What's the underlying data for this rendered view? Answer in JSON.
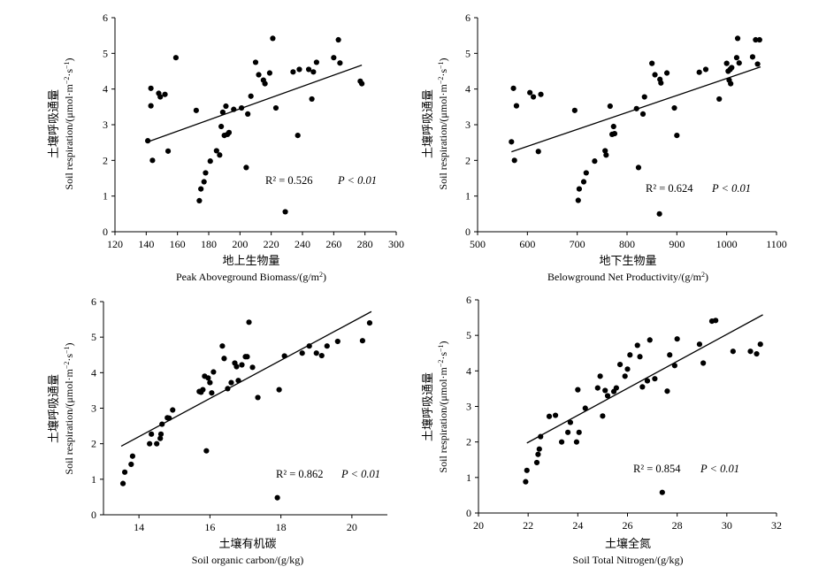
{
  "chart_data": [
    {
      "type": "scatter",
      "title": "",
      "xlabel_cn": "地上生物量",
      "xlabel_en": "Peak Aboveground Biomass/(g/m",
      "xlabel_sup": "2",
      "xlabel_tail": ")",
      "ylabel_cn": "土壤呼吸通量",
      "ylabel_en": "Soil respiration/(μmol·m",
      "ylabel_sup1": "−2",
      "ylabel_mid": "·s",
      "ylabel_sup2": "−1",
      "ylabel_tail": ")",
      "xlim": [
        120,
        300
      ],
      "ylim": [
        0,
        6
      ],
      "xticks": [
        "120",
        "140",
        "160",
        "180",
        "200",
        "220",
        "240",
        "260",
        "280",
        "300"
      ],
      "yticks": [
        "0",
        "1",
        "2",
        "3",
        "4",
        "5",
        "6"
      ],
      "r2_text": "R² = 0.526",
      "p_text": "P < 0.01",
      "fit": {
        "x": [
          141,
          278
        ],
        "y": [
          2.52,
          4.67
        ]
      },
      "points": {
        "x": [
          141,
          143,
          143,
          144,
          148,
          149,
          152,
          154,
          159,
          172,
          174,
          175,
          177,
          178,
          181,
          185,
          187,
          188,
          189,
          190,
          191,
          192,
          193,
          196,
          201,
          204,
          205,
          207,
          210,
          212,
          215,
          216,
          219,
          221,
          223,
          229,
          234,
          237,
          238,
          244,
          246,
          247,
          249,
          260,
          263,
          264,
          277,
          278
        ],
        "y": [
          2.55,
          4.02,
          3.53,
          2.0,
          3.88,
          3.78,
          3.85,
          2.26,
          4.88,
          3.4,
          0.87,
          1.2,
          1.4,
          1.65,
          1.98,
          2.27,
          2.15,
          2.95,
          3.35,
          2.7,
          3.52,
          2.73,
          2.78,
          3.43,
          3.47,
          1.8,
          3.3,
          3.8,
          4.75,
          4.4,
          4.25,
          4.15,
          4.45,
          5.42,
          3.47,
          0.56,
          4.48,
          2.7,
          4.55,
          4.55,
          3.72,
          4.48,
          4.75,
          4.88,
          5.38,
          4.73,
          4.22,
          4.15
        ]
      }
    },
    {
      "type": "scatter",
      "title": "",
      "xlabel_cn": "地下生物量",
      "xlabel_en": "Belowground Net Productivity/(g/m",
      "xlabel_sup": "2",
      "xlabel_tail": ")",
      "ylabel_cn": "土壤呼吸通量",
      "ylabel_en": "Soil respiration/(μmol·m",
      "ylabel_sup1": "−2",
      "ylabel_mid": "·s",
      "ylabel_sup2": "−1",
      "ylabel_tail": ")",
      "xlim": [
        500,
        1100
      ],
      "ylim": [
        0,
        6
      ],
      "xticks": [
        "500",
        "600",
        "700",
        "800",
        "900",
        "1000",
        "1100"
      ],
      "yticks": [
        "0",
        "1",
        "2",
        "3",
        "4",
        "5",
        "6"
      ],
      "r2_text": "R² = 0.624",
      "p_text": "P < 0.01",
      "fit": {
        "x": [
          568,
          1068
        ],
        "y": [
          2.24,
          4.62
        ]
      },
      "points": {
        "x": [
          568,
          572,
          574,
          578,
          605,
          612,
          622,
          627,
          695,
          702,
          704,
          713,
          718,
          735,
          756,
          758,
          766,
          770,
          773,
          775,
          819,
          823,
          832,
          835,
          850,
          856,
          865,
          866,
          868,
          880,
          895,
          900,
          945,
          958,
          985,
          1000,
          1003,
          1005,
          1007,
          1008,
          1010,
          1020,
          1022,
          1025,
          1052,
          1058,
          1062,
          1066
        ],
        "y": [
          2.52,
          4.02,
          2.0,
          3.53,
          3.9,
          3.78,
          2.25,
          3.85,
          3.4,
          0.88,
          1.2,
          1.4,
          1.65,
          1.98,
          2.27,
          2.15,
          3.52,
          2.73,
          2.95,
          2.75,
          3.45,
          1.8,
          3.3,
          3.78,
          4.72,
          4.4,
          0.5,
          4.27,
          4.17,
          4.45,
          3.47,
          2.7,
          4.47,
          4.55,
          3.72,
          4.72,
          4.5,
          4.25,
          4.55,
          4.15,
          4.6,
          4.88,
          5.42,
          4.73,
          4.9,
          5.38,
          4.7,
          5.38
        ]
      }
    },
    {
      "type": "scatter",
      "title": "",
      "xlabel_cn": "土壤有机碳",
      "xlabel_en": "Soil organic carbon/(g/kg)",
      "ylabel_cn": "土壤呼吸通量",
      "ylabel_en": "Soil respiration/(μmol·m",
      "ylabel_sup1": "−2",
      "ylabel_mid": "·s",
      "ylabel_sup2": "−1",
      "ylabel_tail": ")",
      "xlim": [
        13,
        21
      ],
      "ylim": [
        0,
        6
      ],
      "xticks": [
        "14",
        "16",
        "18",
        "20"
      ],
      "yticks": [
        "0",
        "1",
        "2",
        "3",
        "4",
        "5",
        "6"
      ],
      "r2_text": "R² = 0.862",
      "p_text": "P < 0.01",
      "fit": {
        "x": [
          13.5,
          20.55
        ],
        "y": [
          1.93,
          5.72
        ]
      },
      "points": {
        "x": [
          13.55,
          13.6,
          13.78,
          13.82,
          14.3,
          14.35,
          14.5,
          14.6,
          14.62,
          14.65,
          14.8,
          14.85,
          14.95,
          15.7,
          15.75,
          15.8,
          15.85,
          15.9,
          15.95,
          16.0,
          16.05,
          16.1,
          16.35,
          16.4,
          16.5,
          16.6,
          16.7,
          16.75,
          16.8,
          16.9,
          17.0,
          17.05,
          17.1,
          17.2,
          17.35,
          17.9,
          17.95,
          18.1,
          18.6,
          18.8,
          19.0,
          19.15,
          19.3,
          19.6,
          20.3,
          20.5
        ],
        "y": [
          0.88,
          1.2,
          1.42,
          1.65,
          2.0,
          2.27,
          2.0,
          2.15,
          2.27,
          2.55,
          2.73,
          2.72,
          2.95,
          3.47,
          3.45,
          3.52,
          3.9,
          1.8,
          3.85,
          3.72,
          3.43,
          4.02,
          4.75,
          4.4,
          3.55,
          3.72,
          4.27,
          4.17,
          3.78,
          4.22,
          4.45,
          4.45,
          5.42,
          4.15,
          3.3,
          0.48,
          3.52,
          4.47,
          4.55,
          4.75,
          4.55,
          4.48,
          4.75,
          4.88,
          4.9,
          5.4
        ]
      }
    },
    {
      "type": "scatter",
      "title": "",
      "xlabel_cn": "土壤全氮",
      "xlabel_en": "Soil Total Nitrogen/(g/kg)",
      "ylabel_cn": "土壤呼吸通量",
      "ylabel_en": "Soil respiration/(μmol·m",
      "ylabel_sup1": "−2",
      "ylabel_mid": "·s",
      "ylabel_sup2": "−1",
      "ylabel_tail": ")",
      "xlim": [
        20,
        32
      ],
      "ylim": [
        0,
        6
      ],
      "xticks": [
        "20",
        "22",
        "24",
        "26",
        "28",
        "30",
        "32"
      ],
      "yticks": [
        "0",
        "1",
        "2",
        "3",
        "4",
        "5",
        "6"
      ],
      "r2_text": "R² = 0.854",
      "p_text": "P < 0.01",
      "fit": {
        "x": [
          21.95,
          31.45
        ],
        "y": [
          1.97,
          5.58
        ]
      },
      "points": {
        "x": [
          21.9,
          21.95,
          22.35,
          22.4,
          22.45,
          22.5,
          22.85,
          23.1,
          23.35,
          23.6,
          23.7,
          23.95,
          24.0,
          24.05,
          24.3,
          24.8,
          24.9,
          25.0,
          25.1,
          25.2,
          25.45,
          25.55,
          25.7,
          25.9,
          26.0,
          26.1,
          26.4,
          26.5,
          26.6,
          26.8,
          26.9,
          27.1,
          27.4,
          27.6,
          27.7,
          27.9,
          28.0,
          28.9,
          29.05,
          29.4,
          29.55,
          30.25,
          30.95,
          31.2,
          31.35
        ],
        "y": [
          0.88,
          1.2,
          1.42,
          1.65,
          1.8,
          2.15,
          2.72,
          2.75,
          2.0,
          2.27,
          2.55,
          2.0,
          3.47,
          2.27,
          2.95,
          3.52,
          3.85,
          2.73,
          3.45,
          3.3,
          3.42,
          3.52,
          4.18,
          3.85,
          4.05,
          4.45,
          4.72,
          4.4,
          3.55,
          3.72,
          4.87,
          3.78,
          0.58,
          3.43,
          4.45,
          4.15,
          4.9,
          4.75,
          4.22,
          5.4,
          5.42,
          4.55,
          4.55,
          4.48,
          4.75
        ]
      }
    }
  ]
}
